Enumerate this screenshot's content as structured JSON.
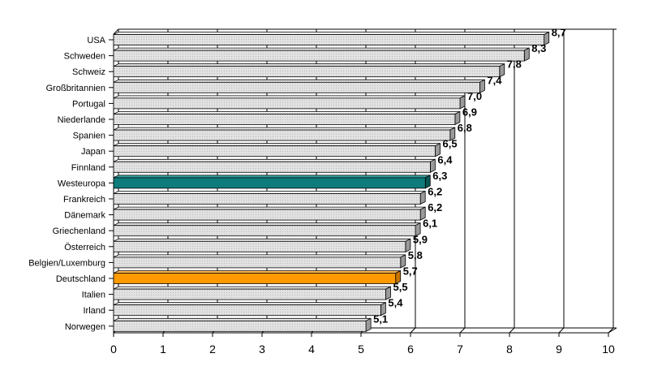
{
  "chart_data": {
    "type": "bar",
    "orientation": "horizontal",
    "categories": [
      "USA",
      "Schweden",
      "Schweiz",
      "Großbritannien",
      "Portugal",
      "Niederlande",
      "Spanien",
      "Japan",
      "Finnland",
      "Westeuropa",
      "Frankreich",
      "Dänemark",
      "Griechenland",
      "Österreich",
      "Belgien/Luxemburg",
      "Deutschland",
      "Italien",
      "Irland",
      "Norwegen"
    ],
    "values": [
      8.7,
      8.3,
      7.8,
      7.4,
      7.0,
      6.9,
      6.8,
      6.5,
      6.4,
      6.3,
      6.2,
      6.2,
      6.1,
      5.9,
      5.8,
      5.7,
      5.5,
      5.4,
      5.1
    ],
    "value_labels": [
      "8,7",
      "8,3",
      "7,8",
      "7,4",
      "7,0",
      "6,9",
      "6,8",
      "6,5",
      "6,4",
      "6,3",
      "6,2",
      "6,2",
      "6,1",
      "5,9",
      "5,8",
      "5,7",
      "5,5",
      "5,4",
      "5,1"
    ],
    "xlim": [
      0,
      10
    ],
    "xticks": [
      "0",
      "1",
      "2",
      "3",
      "4",
      "5",
      "6",
      "7",
      "8",
      "9",
      "10"
    ],
    "grid": "vertical",
    "colors": {
      "default_bar": "#d8d8d8",
      "highlight": {
        "Westeuropa": "#0e7c7b",
        "Deutschland": "#ff9900"
      }
    },
    "title": "",
    "xlabel": "",
    "ylabel": ""
  }
}
